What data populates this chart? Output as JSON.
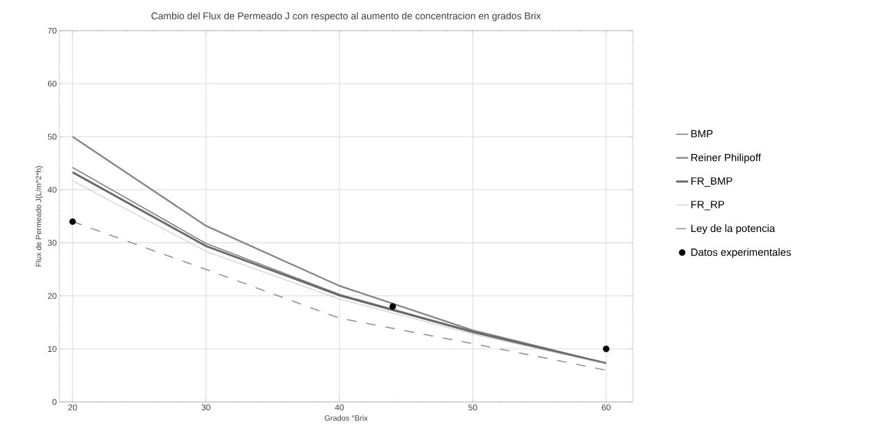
{
  "chart_data": {
    "type": "line",
    "title": "Cambio del Flux de Permeado J con respecto al aumento de concentracion en grados Brix",
    "xlabel": "Grados °Brix",
    "ylabel": "Flux de Permeado J(L/m^2*h)",
    "xlim": [
      19,
      62
    ],
    "ylim": [
      0,
      70
    ],
    "xticks": [
      20,
      30,
      40,
      50,
      60
    ],
    "yticks": [
      0,
      10,
      20,
      30,
      40,
      50,
      60,
      70
    ],
    "grid": true,
    "legend": "right",
    "series": [
      {
        "name": "BMP",
        "color": "#707070",
        "x": [
          20,
          30,
          40,
          50,
          60
        ],
        "values": [
          44.2,
          29.9,
          20.3,
          13.3,
          7.3
        ]
      },
      {
        "name": "Reiner Philipoff",
        "color": "#858585",
        "x": [
          20,
          30,
          40,
          50,
          60
        ],
        "values": [
          50,
          33.2,
          21.9,
          13.5,
          7.3
        ]
      },
      {
        "name": "FR_BMP",
        "color": "#6a6a6a",
        "x": [
          20,
          30,
          40,
          50,
          60
        ],
        "values": [
          43.3,
          29.4,
          20.1,
          13.2,
          7.3
        ]
      },
      {
        "name": "FR_RP",
        "color": "#b4b4b4",
        "x": [
          20,
          30,
          40,
          50,
          60
        ],
        "values": [
          41.7,
          28.4,
          19.4,
          12.8,
          7.2
        ]
      },
      {
        "name": "Ley de la potencia",
        "color": "#909090",
        "line_style": "dashed",
        "x": [
          20,
          30,
          40,
          50,
          60
        ],
        "values": [
          34,
          25,
          15.8,
          11,
          6
        ]
      },
      {
        "name": "Datos experimentales",
        "type": "scatter",
        "color": "#000000",
        "x": [
          20,
          44,
          60
        ],
        "values": [
          34,
          18,
          10
        ]
      }
    ]
  }
}
